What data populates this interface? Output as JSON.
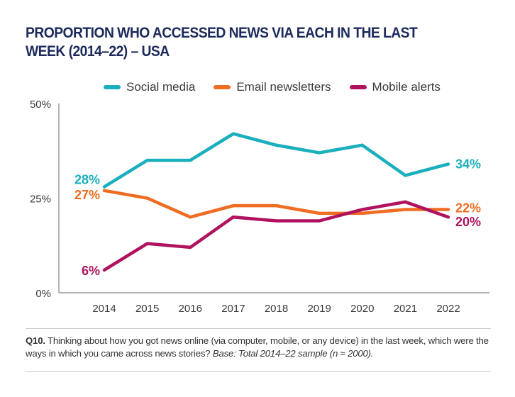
{
  "chart_data": {
    "type": "line",
    "title": "PROPORTION WHO ACCESSED NEWS VIA EACH IN THE LAST WEEK (2014–22) – USA",
    "xlabel": "",
    "ylabel": "",
    "x": [
      "2014",
      "2015",
      "2016",
      "2017",
      "2018",
      "2019",
      "2020",
      "2021",
      "2022"
    ],
    "ylim": [
      0,
      50
    ],
    "yticks": [
      0,
      25,
      50
    ],
    "ytick_labels": [
      "0%",
      "25%",
      "50%"
    ],
    "grid": false,
    "legend_position": "top",
    "series": [
      {
        "name": "Social media",
        "color": "#1aafbd",
        "values": [
          28,
          35,
          35,
          42,
          39,
          37,
          39,
          31,
          34
        ]
      },
      {
        "name": "Email newsletters",
        "color": "#ef6c23",
        "values": [
          27,
          25,
          20,
          23,
          23,
          21,
          21,
          22,
          22
        ]
      },
      {
        "name": "Mobile alerts",
        "color": "#b0125e",
        "values": [
          6,
          13,
          12,
          20,
          19,
          19,
          22,
          24,
          20
        ]
      }
    ],
    "annotations": [
      {
        "series": "Social media",
        "x": "2014",
        "text": "28%"
      },
      {
        "series": "Email newsletters",
        "x": "2014",
        "text": "27%"
      },
      {
        "series": "Mobile alerts",
        "x": "2014",
        "text": "6%"
      },
      {
        "series": "Social media",
        "x": "2022",
        "text": "34%"
      },
      {
        "series": "Email newsletters",
        "x": "2022",
        "text": "22%"
      },
      {
        "series": "Mobile alerts",
        "x": "2022",
        "text": "20%"
      }
    ]
  },
  "footnote": {
    "label": "Q10.",
    "text": " Thinking about how you got news online (via computer, mobile, or any device) in the last week, which were the ways in which you came across news stories? ",
    "base": "Base: Total 2014–22 sample (n ≈ 2000)."
  }
}
